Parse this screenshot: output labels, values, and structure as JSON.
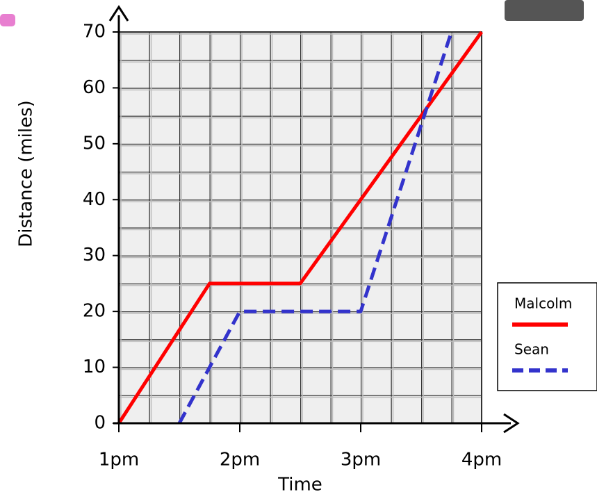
{
  "chart_data": {
    "type": "line",
    "x_label": "Time",
    "y_label": "Distance (miles)",
    "xlim": [
      1,
      4
    ],
    "ylim": [
      0,
      70
    ],
    "xticks": [
      {
        "value": 1,
        "label": "1pm"
      },
      {
        "value": 2,
        "label": "2pm"
      },
      {
        "value": 3,
        "label": "3pm"
      },
      {
        "value": 4,
        "label": "4pm"
      }
    ],
    "yticks": [
      0,
      10,
      20,
      30,
      40,
      50,
      60,
      70
    ],
    "grid": true,
    "legend": "right",
    "series": [
      {
        "name": "Malcolm",
        "color": "#ff0000",
        "dashed": false,
        "x": [
          1,
          1.75,
          2.5,
          4
        ],
        "values": [
          0,
          25,
          25,
          70
        ]
      },
      {
        "name": "Sean",
        "color": "#3333cc",
        "dashed": true,
        "x": [
          1.5,
          2,
          3,
          3.75
        ],
        "values": [
          0,
          20,
          20,
          70
        ]
      }
    ]
  }
}
